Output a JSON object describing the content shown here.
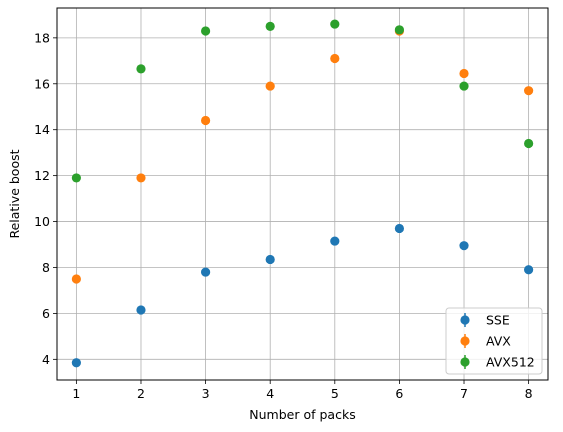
{
  "chart_data": {
    "type": "scatter",
    "title": "",
    "xlabel": "Number of packs",
    "ylabel": "Relative boost",
    "xlim": [
      0.7,
      8.3
    ],
    "ylim": [
      3.1,
      19.3
    ],
    "xticks": [
      1,
      2,
      3,
      4,
      5,
      6,
      7,
      8
    ],
    "yticks": [
      4,
      6,
      8,
      10,
      12,
      14,
      16,
      18
    ],
    "xtick_labels": [
      "1",
      "2",
      "3",
      "4",
      "5",
      "6",
      "7",
      "8"
    ],
    "ytick_labels": [
      "4",
      "6",
      "8",
      "10",
      "12",
      "14",
      "16",
      "18"
    ],
    "grid": true,
    "legend_position": "lower right",
    "x": [
      1,
      2,
      3,
      4,
      5,
      6,
      7,
      8
    ],
    "series": [
      {
        "name": "SSE",
        "color": "#1f77b4",
        "values": [
          3.85,
          6.15,
          7.8,
          8.35,
          9.15,
          9.7,
          8.95,
          7.9
        ]
      },
      {
        "name": "AVX",
        "color": "#ff7f0e",
        "values": [
          7.5,
          11.9,
          14.4,
          15.9,
          17.1,
          18.3,
          16.45,
          15.7
        ]
      },
      {
        "name": "AVX512",
        "color": "#2ca02c",
        "values": [
          11.9,
          16.65,
          18.3,
          18.5,
          18.6,
          18.35,
          15.9,
          13.4
        ]
      }
    ]
  }
}
